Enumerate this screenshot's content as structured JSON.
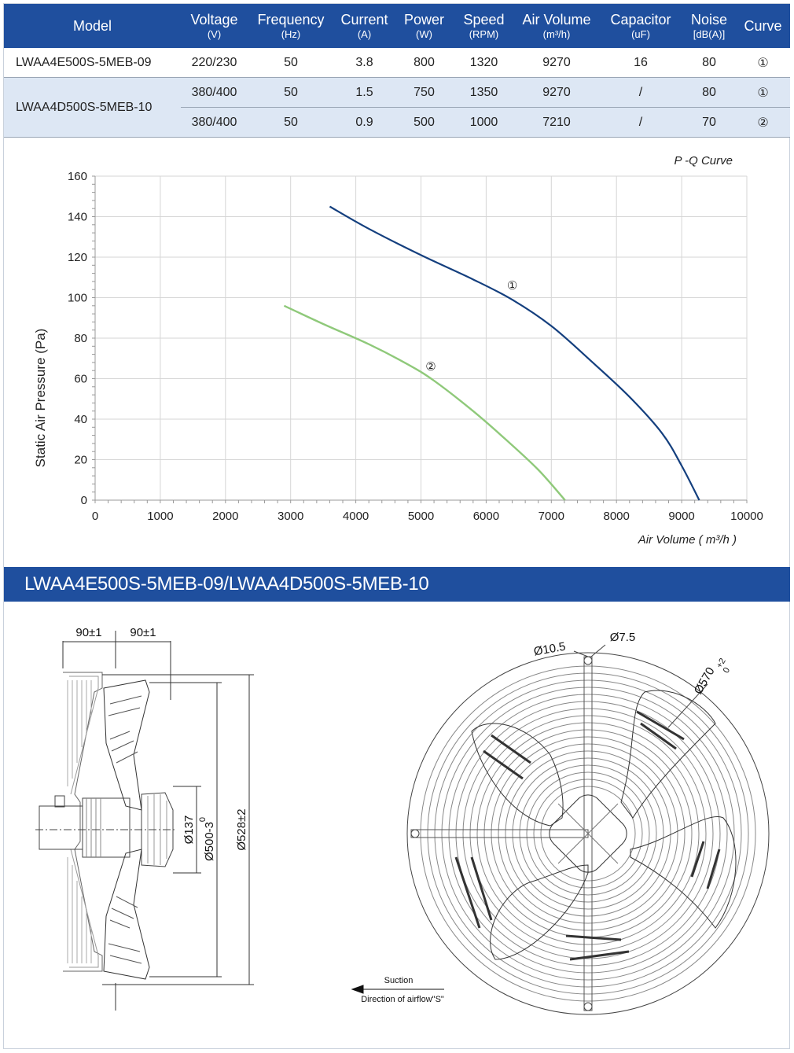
{
  "table": {
    "headers": [
      {
        "main": "Model",
        "unit": ""
      },
      {
        "main": "Voltage",
        "unit": "(V)"
      },
      {
        "main": "Frequency",
        "unit": "(Hz)"
      },
      {
        "main": "Current",
        "unit": "(A)"
      },
      {
        "main": "Power",
        "unit": "(W)"
      },
      {
        "main": "Speed",
        "unit": "(RPM)"
      },
      {
        "main": "Air Volume",
        "unit": "(m³/h)"
      },
      {
        "main": "Capacitor",
        "unit": "(uF)"
      },
      {
        "main": "Noise",
        "unit": "[dB(A)]"
      },
      {
        "main": "Curve",
        "unit": ""
      }
    ],
    "rows": [
      {
        "model": "LWAA4E500S-5MEB-09",
        "voltage": "220/230",
        "frequency": "50",
        "current": "3.8",
        "power": "800",
        "speed": "1320",
        "air_volume": "9270",
        "capacitor": "16",
        "noise": "80",
        "curve": "①"
      },
      {
        "model": "LWAA4D500S-5MEB-10",
        "voltage": "380/400",
        "frequency": "50",
        "current": "1.5",
        "power": "750",
        "speed": "1350",
        "air_volume": "9270",
        "capacitor": "/",
        "noise": "80",
        "curve": "①"
      },
      {
        "model": "",
        "voltage": "380/400",
        "frequency": "50",
        "current": "0.9",
        "power": "500",
        "speed": "1000",
        "air_volume": "7210",
        "capacitor": "/",
        "noise": "70",
        "curve": "②"
      }
    ]
  },
  "chart_data": {
    "type": "line",
    "title": "P -Q Curve",
    "xlabel": "Air Volume ( m³/h )",
    "ylabel": "Static Air Pressure  (Pa)",
    "xlim": [
      0,
      10000
    ],
    "ylim": [
      0,
      160
    ],
    "xticks": [
      "0",
      "1000",
      "2000",
      "3000",
      "4000",
      "5000",
      "6000",
      "7000",
      "8000",
      "9000",
      "10000"
    ],
    "yticks": [
      "0",
      "20",
      "40",
      "60",
      "80",
      "100",
      "120",
      "140",
      "160"
    ],
    "grid": true,
    "series": [
      {
        "name": "①",
        "color": "#143f7e",
        "x": [
          3600,
          4200,
          5000,
          5800,
          6400,
          7000,
          7600,
          8200,
          8700,
          9000,
          9270
        ],
        "y": [
          145,
          134,
          121,
          109,
          99,
          86,
          69,
          51,
          33,
          17,
          0
        ]
      },
      {
        "name": "②",
        "color": "#8fc97a",
        "x": [
          2900,
          3500,
          4200,
          4800,
          5200,
          5800,
          6300,
          6800,
          7210
        ],
        "y": [
          96,
          87,
          77,
          67,
          59,
          44,
          30,
          15,
          0
        ]
      }
    ]
  },
  "section_title": "LWAA4E500S-5MEB-09/LWAA4D500S-5MEB-10",
  "drawing": {
    "dim_top_left": "90±1",
    "dim_top_right": "90±1",
    "dim_137": "Ø137",
    "dim_500": "Ø500-3",
    "dim_500_sup": "0",
    "dim_528": "Ø528±2",
    "dim_10_5": "Ø10.5",
    "dim_7_5": "Ø7.5",
    "dim_570": "Ø570",
    "dim_570_tol": "+2",
    "dim_570_tol0": "0",
    "suction": "Suction",
    "airflow": "Direction of airflow\"S\""
  }
}
